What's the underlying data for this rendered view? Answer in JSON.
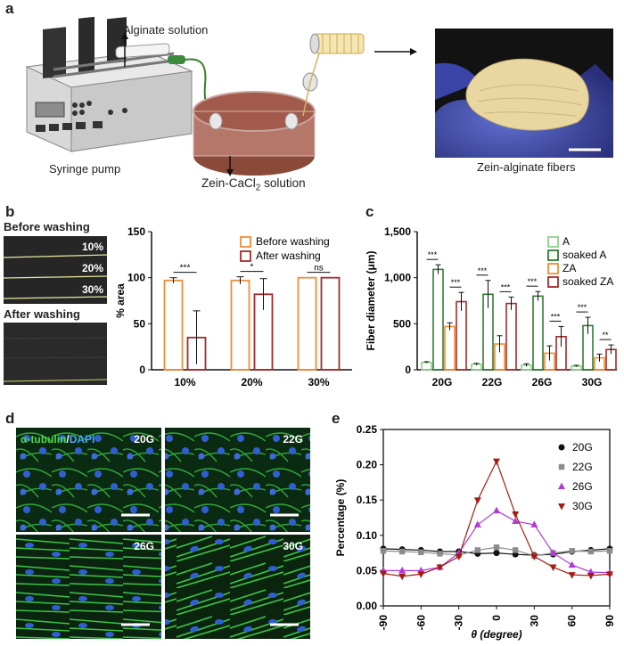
{
  "panels": {
    "a": {
      "label": "a",
      "alginate": "Alginate solution",
      "pump": "Syringe pump",
      "bath": "Zein-CaCl",
      "bath_sub": "2",
      "bath_end": " solution",
      "fibers": "Zein-alginate fibers"
    },
    "b": {
      "label": "b",
      "before": "Before washing",
      "after": "After washing",
      "photo_labels": [
        "10%",
        "20%",
        "30%"
      ]
    },
    "c": {
      "label": "c"
    },
    "d": {
      "label": "d",
      "stain_a": "α-tubulin",
      "stain_sep": "/",
      "stain_b": "DAPI",
      "tiles": [
        "20G",
        "22G",
        "26G",
        "30G"
      ]
    },
    "e": {
      "label": "e"
    }
  },
  "colors": {
    "orange": "#f08c3a",
    "darkred": "#a52a2a",
    "lightgreen": "#8fd18a",
    "darkgreen": "#2e7d32",
    "e_20G": "#111111",
    "e_22G": "#8c8c8c",
    "e_26G": "#b23ad6",
    "e_30G": "#a51c12"
  },
  "chart_data": [
    {
      "type": "bar",
      "panel": "b",
      "categories": [
        "10%",
        "20%",
        "30%"
      ],
      "series": [
        {
          "name": "Before washing",
          "values": [
            97,
            97,
            100
          ],
          "errors": [
            3,
            4,
            0
          ]
        },
        {
          "name": "After washing",
          "values": [
            35,
            82,
            100
          ],
          "errors": [
            29,
            17,
            0
          ]
        }
      ],
      "ylabel": "% area",
      "ylim": [
        0,
        150
      ],
      "yticks": [
        "0",
        "50",
        "100",
        "150"
      ],
      "significance": [
        "***",
        "*",
        "ns"
      ],
      "legend": "top-right"
    },
    {
      "type": "bar",
      "panel": "c",
      "categories": [
        "20G",
        "22G",
        "26G",
        "30G"
      ],
      "series": [
        {
          "name": "A",
          "values": [
            80,
            60,
            50,
            40
          ],
          "errors": [
            8,
            10,
            15,
            8
          ]
        },
        {
          "name": "soaked A",
          "values": [
            1090,
            820,
            800,
            480
          ],
          "errors": [
            50,
            150,
            50,
            90
          ]
        },
        {
          "name": "ZA",
          "values": [
            470,
            280,
            180,
            130
          ],
          "errors": [
            40,
            90,
            80,
            40
          ]
        },
        {
          "name": "soaked ZA",
          "values": [
            740,
            720,
            360,
            220
          ],
          "errors": [
            100,
            70,
            110,
            50
          ]
        }
      ],
      "ylabel": "Fiber diameter (μm)",
      "ylim": [
        0,
        1500
      ],
      "yticks": [
        "0",
        "500",
        "1,000",
        "1,500"
      ],
      "significance": [
        "***",
        "***",
        "***",
        "***",
        "***",
        "***",
        "***",
        "**"
      ],
      "legend": "top-right"
    },
    {
      "type": "line",
      "panel": "e",
      "x": [
        -90,
        -75,
        -60,
        -45,
        -30,
        -15,
        0,
        15,
        30,
        45,
        60,
        75,
        90
      ],
      "series": [
        {
          "name": "20G",
          "values": [
            0.081,
            0.08,
            0.079,
            0.077,
            0.077,
            0.074,
            0.075,
            0.073,
            0.072,
            0.073,
            0.077,
            0.079,
            0.081
          ],
          "marker": "circle"
        },
        {
          "name": "22G",
          "values": [
            0.078,
            0.077,
            0.076,
            0.074,
            0.072,
            0.079,
            0.083,
            0.079,
            0.071,
            0.075,
            0.078,
            0.077,
            0.078
          ],
          "marker": "square"
        },
        {
          "name": "26G",
          "values": [
            0.05,
            0.05,
            0.05,
            0.055,
            0.075,
            0.115,
            0.135,
            0.12,
            0.115,
            0.075,
            0.058,
            0.048,
            0.047
          ],
          "marker": "triangle-up"
        },
        {
          "name": "30G",
          "values": [
            0.046,
            0.042,
            0.045,
            0.055,
            0.07,
            0.15,
            0.205,
            0.13,
            0.07,
            0.055,
            0.044,
            0.043,
            0.045
          ],
          "marker": "triangle-down"
        }
      ],
      "xlabel": "θ (degree)",
      "ylabel": "Percentage (%)",
      "xlim": [
        -90,
        90
      ],
      "ylim": [
        0,
        0.25
      ],
      "xticks": [
        "-90",
        "-60",
        "-30",
        "0",
        "30",
        "60",
        "90"
      ],
      "yticks": [
        "0.00",
        "0.05",
        "0.10",
        "0.15",
        "0.20",
        "0.25"
      ],
      "legend": "top-right"
    }
  ]
}
